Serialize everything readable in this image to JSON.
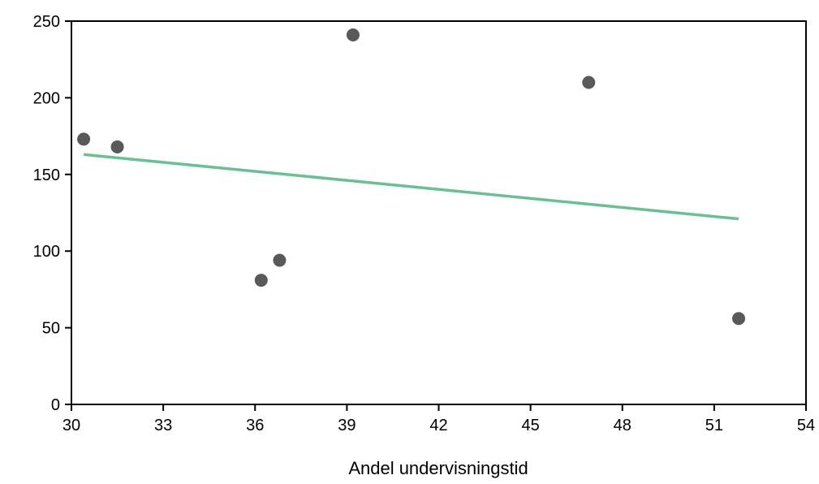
{
  "chart_data": {
    "type": "scatter",
    "title": "",
    "xlabel": "Andel undervisningstid",
    "ylabel": "",
    "xlim": [
      30,
      54
    ],
    "ylim": [
      0,
      250
    ],
    "xticks": [
      30,
      33,
      36,
      39,
      42,
      45,
      48,
      51,
      54
    ],
    "yticks": [
      0,
      50,
      100,
      150,
      200,
      250
    ],
    "grid": false,
    "legend": "none",
    "series": [
      {
        "points": [
          {
            "x": 30.4,
            "y": 173
          },
          {
            "x": 31.5,
            "y": 168
          },
          {
            "x": 36.2,
            "y": 81
          },
          {
            "x": 36.8,
            "y": 94
          },
          {
            "x": 39.2,
            "y": 241
          },
          {
            "x": 46.9,
            "y": 210
          },
          {
            "x": 51.8,
            "y": 56
          }
        ],
        "color": "#595959"
      }
    ],
    "trendline": {
      "type": "linear",
      "x": [
        30.4,
        51.8
      ],
      "y": [
        163,
        121
      ],
      "color": "#6cbf94"
    }
  }
}
